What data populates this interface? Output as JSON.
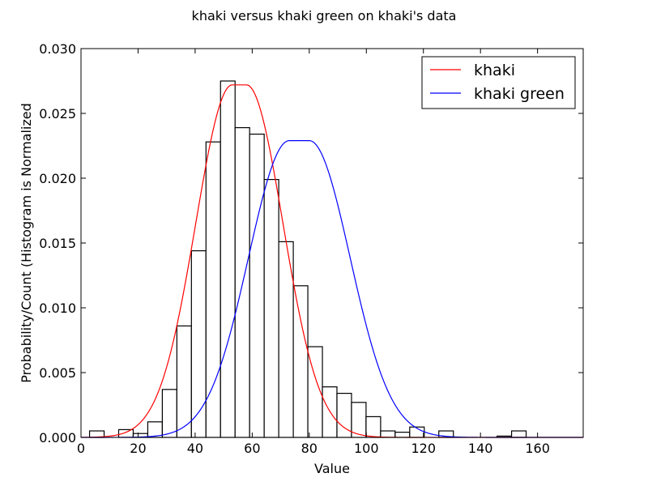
{
  "chart_data": {
    "type": "histogram+line",
    "title": "khaki versus khaki green on khaki's data",
    "xlabel": "Value",
    "ylabel": "Probability/Count (Histogram is Normalized",
    "xlim": [
      0,
      176
    ],
    "ylim": [
      0,
      0.03
    ],
    "xticks": [
      0,
      20,
      40,
      60,
      80,
      100,
      120,
      140,
      160
    ],
    "yticks": [
      0.0,
      0.005,
      0.01,
      0.015,
      0.02,
      0.025,
      0.03
    ],
    "xtick_labels": [
      "0",
      "20",
      "40",
      "60",
      "80",
      "100",
      "120",
      "140",
      "160"
    ],
    "ytick_labels": [
      "0.000",
      "0.005",
      "0.010",
      "0.015",
      "0.020",
      "0.025",
      "0.030"
    ],
    "legend_position": "top-right",
    "histogram": {
      "bin_edges": [
        3.0,
        8.1,
        13.2,
        18.3,
        23.4,
        28.5,
        33.6,
        38.7,
        43.8,
        48.9,
        54.0,
        59.1,
        64.2,
        69.3,
        74.4,
        79.5,
        84.6,
        89.7,
        94.8,
        99.9,
        105.0,
        110.1,
        115.2,
        120.3,
        125.4,
        130.5,
        135.6,
        140.7,
        145.8,
        150.9,
        156.0
      ],
      "values": [
        0.0005,
        0.0,
        0.0006,
        0.0003,
        0.0012,
        0.0037,
        0.0086,
        0.0144,
        0.0228,
        0.0275,
        0.0239,
        0.0234,
        0.0199,
        0.0151,
        0.0117,
        0.007,
        0.0039,
        0.0034,
        0.0027,
        0.0016,
        0.0005,
        0.0004,
        0.0008,
        0.0,
        0.0005,
        0.0,
        0.0,
        0.0,
        0.0001,
        0.0005
      ]
    },
    "series": [
      {
        "name": "khaki",
        "color": "#ff0000",
        "mu": 55.5,
        "peak": 0.0272,
        "plateau_half_width": 2.5,
        "sigma": 12.8
      },
      {
        "name": "khaki green",
        "color": "#0000ff",
        "mu": 76.5,
        "peak": 0.0229,
        "plateau_half_width": 3.5,
        "sigma": 14.3
      }
    ]
  }
}
